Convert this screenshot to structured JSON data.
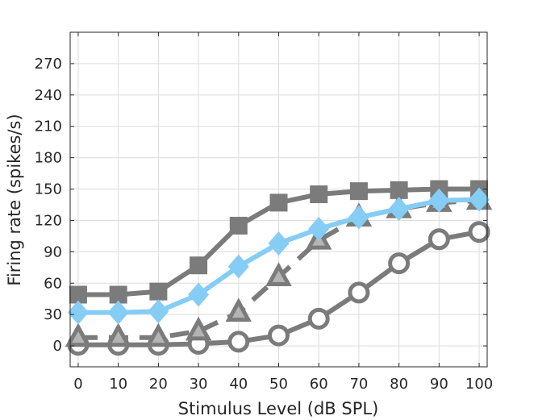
{
  "chart_data": {
    "type": "line",
    "title": "",
    "xlabel": "Stimulus Level (dB SPL)",
    "ylabel": "Firing rate (spikes/s)",
    "xlim": [
      -2,
      102
    ],
    "ylim": [
      -20,
      300
    ],
    "grid": true,
    "x": [
      0,
      10,
      20,
      30,
      40,
      50,
      60,
      70,
      80,
      90,
      100
    ],
    "x_ticks": [
      "0",
      "10",
      "20",
      "30",
      "40",
      "50",
      "60",
      "70",
      "80",
      "90",
      "100"
    ],
    "y_ticks": [
      "0",
      "30",
      "60",
      "90",
      "120",
      "150",
      "180",
      "210",
      "240",
      "270"
    ],
    "y_tick_values": [
      0,
      30,
      60,
      90,
      120,
      150,
      180,
      210,
      240,
      270
    ],
    "series": [
      {
        "name": "square",
        "marker": "square",
        "line_style": "solid",
        "color": "#7b7b7b",
        "values": [
          49,
          49,
          52,
          77,
          115,
          137,
          145,
          148,
          149,
          150,
          150
        ]
      },
      {
        "name": "circle",
        "marker": "circle",
        "line_style": "solid",
        "color": "#7b7b7b",
        "values": [
          1,
          1,
          1,
          2,
          4,
          10,
          26,
          51,
          79,
          102,
          109
        ]
      },
      {
        "name": "triangle",
        "marker": "triangle",
        "line_style": "dashed",
        "color": "#7b7b7b",
        "values": [
          8,
          8,
          8,
          14,
          32,
          66,
          101,
          123,
          131,
          137,
          139
        ]
      },
      {
        "name": "diamond",
        "marker": "diamond",
        "line_style": "solid",
        "color": "#85cdf5",
        "values": [
          32,
          32,
          33,
          49,
          76,
          98,
          112,
          123,
          131,
          139,
          140
        ]
      }
    ]
  }
}
